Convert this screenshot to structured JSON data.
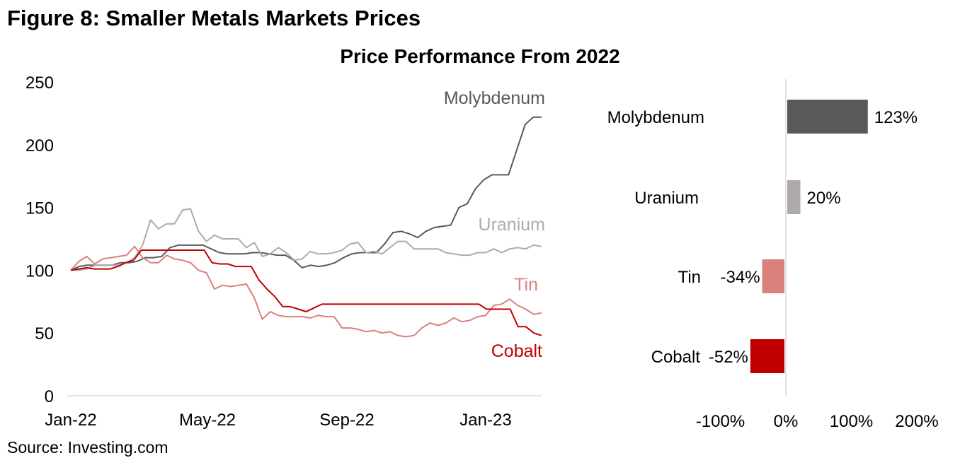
{
  "figure_title": "Figure 8: Smaller Metals Markets Prices",
  "source": "Source: Investing.com",
  "chart_data": [
    {
      "type": "line",
      "title": "Price Performance From 2022",
      "ylim": [
        0,
        250
      ],
      "yticks": [
        "0",
        "50",
        "100",
        "150",
        "200",
        "250"
      ],
      "ytick_values": [
        0,
        50,
        100,
        150,
        200,
        250
      ],
      "xticks": [
        "Jan-22",
        "May-22",
        "Sep-22",
        "Jan-23"
      ],
      "grid": false,
      "series": [
        {
          "name": "Molybdenum",
          "color": "#595959",
          "values": [
            100,
            103,
            104,
            104,
            104,
            104,
            106,
            106,
            107,
            110,
            110,
            111,
            118,
            120,
            120,
            120,
            120,
            117,
            114,
            113,
            113,
            113,
            114,
            114,
            113,
            112,
            112,
            108,
            102,
            104,
            103,
            104,
            106,
            110,
            113,
            114,
            114,
            114,
            121,
            130,
            131,
            129,
            126,
            131,
            134,
            135,
            136,
            150,
            153,
            165,
            172,
            176,
            176,
            176,
            196,
            216,
            222,
            222
          ]
        },
        {
          "name": "Uranium",
          "color": "#aeaaaa",
          "values": [
            100,
            100,
            101,
            104,
            104,
            104,
            104,
            106,
            110,
            120,
            140,
            133,
            137,
            137,
            148,
            149,
            131,
            123,
            128,
            125,
            125,
            125,
            118,
            122,
            111,
            113,
            118,
            114,
            108,
            109,
            115,
            113,
            113,
            114,
            116,
            121,
            122,
            114,
            115,
            113,
            118,
            123,
            123,
            117,
            117,
            117,
            117,
            114,
            113,
            112,
            112,
            114,
            114,
            117,
            114,
            117,
            118,
            117,
            120,
            119
          ]
        },
        {
          "name": "Tin",
          "color": "#d9817d",
          "values": [
            100,
            107,
            111,
            105,
            109,
            110,
            111,
            112,
            119,
            110,
            106,
            106,
            112,
            109,
            108,
            106,
            100,
            98,
            85,
            88,
            87,
            88,
            89,
            78,
            61,
            67,
            64,
            63,
            63,
            63,
            62,
            64,
            63,
            63,
            54,
            54,
            53,
            51,
            52,
            50,
            51,
            48,
            47,
            48,
            54,
            58,
            56,
            58,
            62,
            59,
            60,
            63,
            64,
            72,
            73,
            77,
            72,
            69,
            65,
            66
          ]
        },
        {
          "name": "Cobalt",
          "color": "#c00000",
          "values": [
            100,
            101,
            102,
            101,
            101,
            101,
            103,
            106,
            108,
            116,
            116,
            116,
            116,
            116,
            116,
            116,
            116,
            116,
            106,
            105,
            105,
            103,
            103,
            103,
            92,
            85,
            79,
            71,
            71,
            69,
            67,
            70,
            73,
            73,
            73,
            73,
            73,
            73,
            73,
            73,
            73,
            73,
            73,
            73,
            73,
            73,
            73,
            73,
            73,
            73,
            73,
            73,
            73,
            69,
            69,
            69,
            69,
            55,
            55,
            50,
            48
          ]
        }
      ]
    },
    {
      "type": "bar",
      "orientation": "horizontal",
      "categories": [
        "Molybdenum",
        "Uranium",
        "Tin",
        "Cobalt"
      ],
      "values": [
        123,
        20,
        -34,
        -52
      ],
      "data_labels": [
        "123%",
        "20%",
        "-34%",
        "-52%"
      ],
      "colors": [
        "#595959",
        "#aeaaaa",
        "#d9817d",
        "#c00000"
      ],
      "xlim": [
        -100,
        200
      ],
      "xticks": [
        "-100%",
        "0%",
        "100%",
        "200%"
      ],
      "xtick_values": [
        -100,
        0,
        100,
        200
      ]
    }
  ]
}
